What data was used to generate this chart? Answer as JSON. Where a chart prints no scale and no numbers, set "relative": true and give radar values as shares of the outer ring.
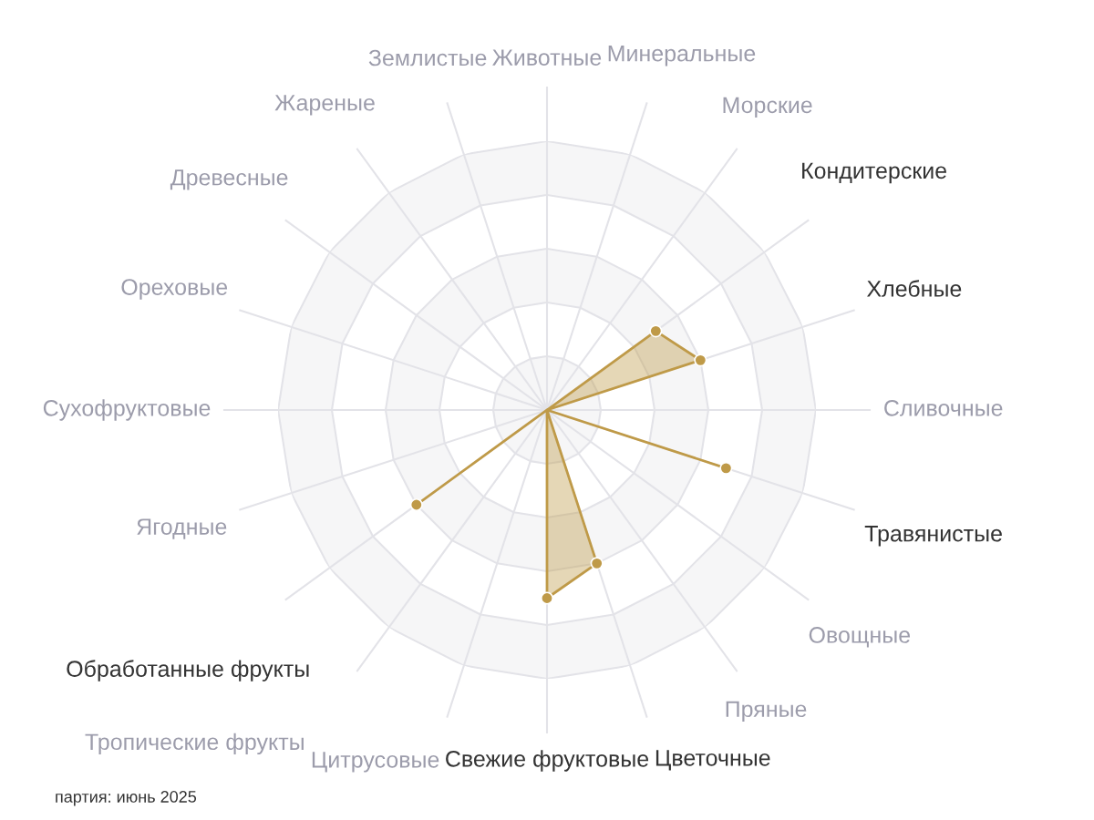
{
  "chart_data": {
    "type": "radar",
    "relative": true,
    "categories": [
      "Животные",
      "Минеральные",
      "Морские",
      "Кондитерские",
      "Хлебные",
      "Сливочные",
      "Травянистые",
      "Овощные",
      "Пряные",
      "Цветочные",
      "Свежие фруктовые",
      "Цитрусовые",
      "Тропические фрукты",
      "Обработанные фрукты",
      "Ягодные",
      "Сухофруктовые",
      "Ореховые",
      "Древесные",
      "Жареные",
      "Землистые"
    ],
    "series": [
      {
        "color": "#bf9a48",
        "values": [
          0,
          0,
          0,
          0.5,
          0.6,
          0,
          0.7,
          0,
          0,
          0.6,
          0.7,
          0,
          0,
          0.6,
          0,
          0,
          0,
          0,
          0,
          0
        ]
      }
    ],
    "grid": true,
    "marker": "circle",
    "annotations": [
      "партия: июнь 2025"
    ]
  }
}
